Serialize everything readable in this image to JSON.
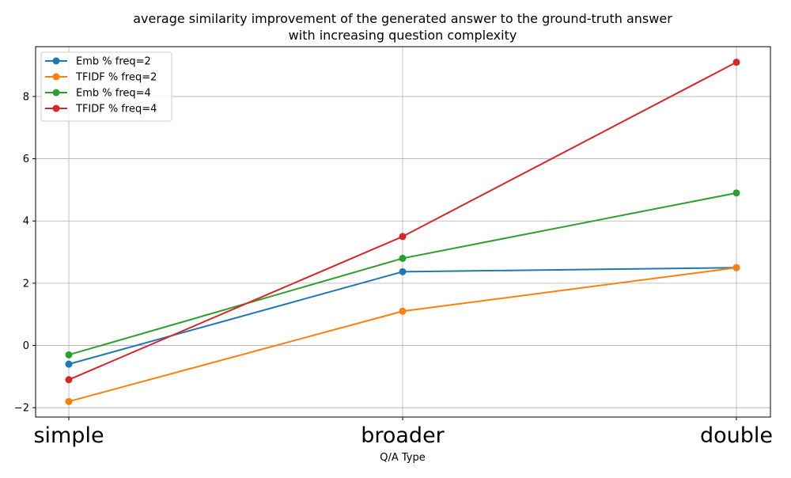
{
  "chart_data": {
    "type": "line",
    "title_lines": [
      "average similarity improvement of the generated answer to the ground-truth answer",
      "with increasing question complexity"
    ],
    "xlabel": "Q/A Type",
    "ylabel": "",
    "categories": [
      "simple",
      "broader",
      "double"
    ],
    "ylim": [
      -2.3,
      9.6
    ],
    "yticks": [
      -2,
      0,
      2,
      4,
      6,
      8
    ],
    "ytick_labels": [
      "−2",
      "0",
      "2",
      "4",
      "6",
      "8"
    ],
    "grid": true,
    "legend_position": "top-left",
    "series": [
      {
        "name": "Emb %  freq=2",
        "color": "#1f77b4",
        "values": [
          -0.6,
          2.37,
          2.5
        ]
      },
      {
        "name": "TFIDF %  freq=2",
        "color": "#ff7f0e",
        "values": [
          -1.8,
          1.1,
          2.5
        ]
      },
      {
        "name": "Emb %  freq=4",
        "color": "#2ca02c",
        "values": [
          -0.3,
          2.8,
          4.9
        ]
      },
      {
        "name": "TFIDF %  freq=4",
        "color": "#d62728",
        "values": [
          -1.1,
          3.5,
          9.1
        ]
      }
    ]
  }
}
